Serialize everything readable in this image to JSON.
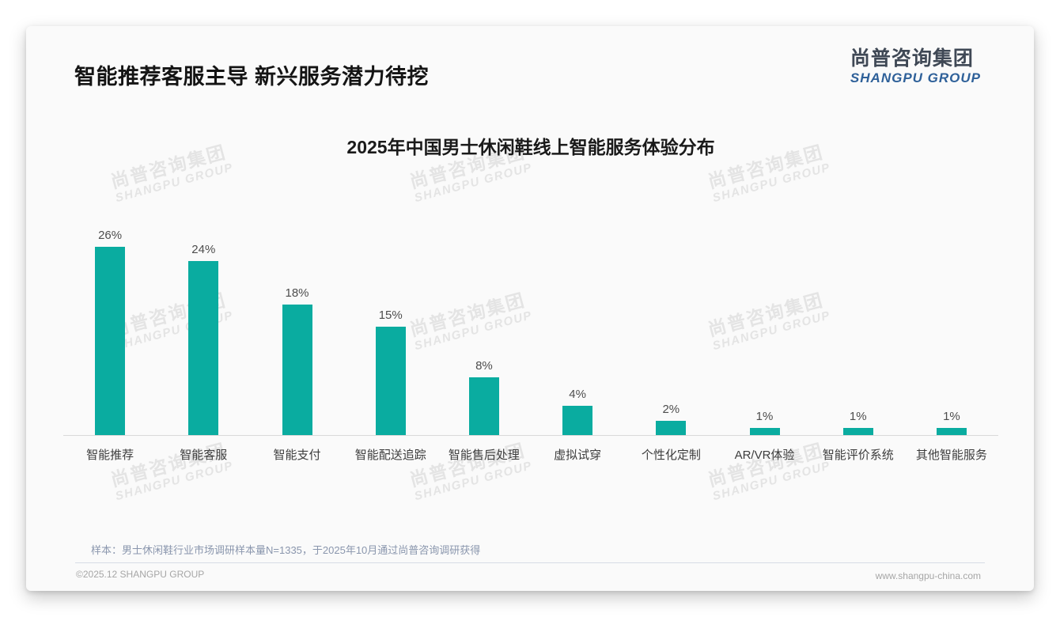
{
  "page": {
    "slide_title": "智能推荐客服主导 新兴服务潜力待挖",
    "logo": {
      "cn": "尚普咨询集团",
      "en": "SHANGPU GROUP"
    },
    "watermark": {
      "cn": "尚普咨询集团",
      "en": "SHANGPU GROUP"
    },
    "note": "样本：男士休闲鞋行业市场调研样本量N=1335，于2025年10月通过尚普咨询调研获得",
    "footer": {
      "copyright": "©2025.12 SHANGPU GROUP",
      "website": "www.shangpu-china.com"
    }
  },
  "chart_data": {
    "type": "bar",
    "title": "2025年中国男士休闲鞋线上智能服务体验分布",
    "categories": [
      "智能推荐",
      "智能客服",
      "智能支付",
      "智能配送追踪",
      "智能售后处理",
      "虚拟试穿",
      "个性化定制",
      "AR/VR体验",
      "智能评价系统",
      "其他智能服务"
    ],
    "values": [
      26,
      24,
      18,
      15,
      8,
      4,
      2,
      1,
      1,
      1
    ],
    "value_labels": [
      "26%",
      "24%",
      "18%",
      "15%",
      "8%",
      "4%",
      "2%",
      "1%",
      "1%",
      "1%"
    ],
    "unit": "%",
    "ylim": [
      0,
      28
    ],
    "grid": false,
    "legend": false,
    "bar_color": "#0aaca0",
    "axis_color": "#d9d9d9",
    "label_color": "#4d4d4d"
  }
}
